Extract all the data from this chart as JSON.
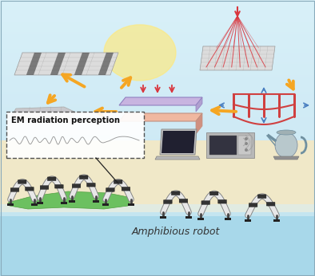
{
  "bg_sky": "#cce8f4",
  "bg_bottom": "#d4ecf7",
  "bg_cream": "#f5f0d8",
  "sun_color": "#ffe97a",
  "arrow_orange": "#f5a623",
  "arrow_red": "#d9363e",
  "arrow_blue": "#4a7fc1",
  "mat_face": "#dcdcdc",
  "mat_edge": "#aaaaaa",
  "mat_dark": "#444444",
  "press_top": "#c8b4e0",
  "press_bot": "#f0b8a0",
  "press_side_top": "#b0a0d0",
  "press_side_bot": "#d09080",
  "actuator_red": "#d04040",
  "robot_body": "#e8e8e8",
  "robot_dark": "#555555",
  "island_green": "#6cc060",
  "water_blue": "#a8d8ea",
  "em_waveform": "#999999",
  "title_text": "Amphibious robot",
  "em_label": "EM radiation perception",
  "figsize": [
    3.94,
    3.46
  ],
  "dpi": 100
}
